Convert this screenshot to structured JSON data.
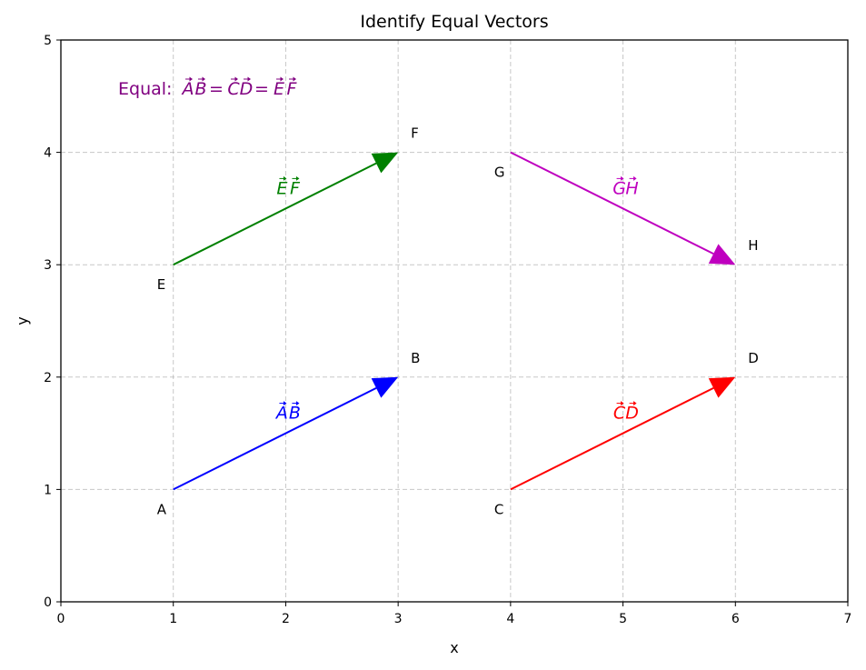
{
  "chart_data": {
    "type": "vector-plot",
    "title": "Identify Equal Vectors",
    "xlabel": "x",
    "ylabel": "y",
    "xlim": [
      0,
      7
    ],
    "ylim": [
      0,
      5
    ],
    "xticks": [
      "0",
      "1",
      "2",
      "3",
      "4",
      "5",
      "6",
      "7"
    ],
    "yticks": [
      "0",
      "1",
      "2",
      "3",
      "4",
      "5"
    ],
    "grid": true,
    "points": [
      {
        "label": "A",
        "x": 1,
        "y": 1
      },
      {
        "label": "B",
        "x": 3,
        "y": 2
      },
      {
        "label": "C",
        "x": 4,
        "y": 1
      },
      {
        "label": "D",
        "x": 6,
        "y": 2
      },
      {
        "label": "E",
        "x": 1,
        "y": 3
      },
      {
        "label": "F",
        "x": 3,
        "y": 4
      },
      {
        "label": "G",
        "x": 4,
        "y": 4
      },
      {
        "label": "H",
        "x": 6,
        "y": 3
      }
    ],
    "vectors": [
      {
        "name": "AB",
        "from": [
          1,
          1
        ],
        "to": [
          3,
          2
        ],
        "color": "#0000ff"
      },
      {
        "name": "CD",
        "from": [
          4,
          1
        ],
        "to": [
          6,
          2
        ],
        "color": "#ff0000"
      },
      {
        "name": "EF",
        "from": [
          1,
          3
        ],
        "to": [
          3,
          4
        ],
        "color": "#008000"
      },
      {
        "name": "GH",
        "from": [
          4,
          4
        ],
        "to": [
          6,
          3
        ],
        "color": "#bf00bf"
      }
    ],
    "annotation": {
      "prefix": "Equal: ",
      "vectors": [
        "AB",
        "CD",
        "EF"
      ],
      "color": "#800080"
    }
  }
}
